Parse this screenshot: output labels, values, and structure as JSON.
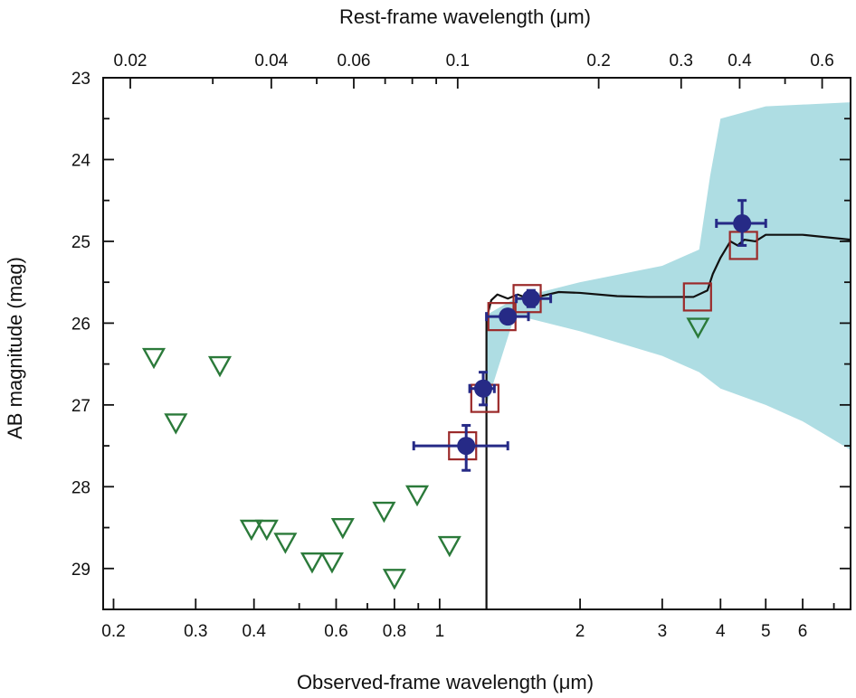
{
  "chart_data": {
    "type": "scatter",
    "title": "",
    "xlabel": "Observed-frame wavelength (μm)",
    "x2label": "Rest-frame wavelength (μm)",
    "ylabel": "AB magnitude (mag)",
    "xscale": "log",
    "x2scale": "log",
    "yaxis_inverted": true,
    "xlim": [
      0.19,
      7.6
    ],
    "x2lim": [
      0.0175,
      0.69
    ],
    "ylim": [
      29.5,
      23
    ],
    "x_ticks": [
      "0.2",
      "0.3",
      "0.4",
      "0.6",
      "0.8",
      "1",
      "2",
      "3",
      "4",
      "5",
      "6"
    ],
    "x_tick_values": [
      0.2,
      0.3,
      0.4,
      0.6,
      0.8,
      1,
      2,
      3,
      4,
      5,
      6
    ],
    "x2_ticks": [
      "0.02",
      "0.04",
      "0.06",
      "0.1",
      "0.2",
      "0.3",
      "0.4",
      "0.6"
    ],
    "x2_tick_values": [
      0.02,
      0.04,
      0.06,
      0.1,
      0.2,
      0.3,
      0.4,
      0.6
    ],
    "y_ticks": [
      "23",
      "24",
      "25",
      "26",
      "27",
      "28",
      "29"
    ],
    "y_tick_values": [
      23,
      24,
      25,
      26,
      27,
      28,
      29
    ],
    "colors": {
      "detections": "#262a86",
      "model_squares": "#9b2a2a",
      "upper_limits": "#2b7a3a",
      "model_band": "#aedde3",
      "model_line": "#111111"
    },
    "series": [
      {
        "kind": "detections",
        "points": [
          {
            "x": 1.14,
            "y": 27.5,
            "xerr": [
              0.88,
              1.4
            ],
            "yerr": [
              27.25,
              27.8
            ]
          },
          {
            "x": 1.24,
            "y": 26.8,
            "xerr": [
              1.16,
              1.31
            ],
            "yerr": [
              26.6,
              27.0
            ]
          },
          {
            "x": 1.4,
            "y": 25.92,
            "xerr": [
              1.26,
              1.55
            ],
            "yerr": [
              25.85,
              26.0
            ]
          },
          {
            "x": 1.57,
            "y": 25.7,
            "xerr": [
              1.46,
              1.73
            ],
            "yerr": [
              25.6,
              25.8
            ]
          },
          {
            "x": 4.45,
            "y": 24.78,
            "xerr": [
              3.92,
              5.0
            ],
            "yerr": [
              24.5,
              25.05
            ]
          }
        ]
      },
      {
        "kind": "model_squares",
        "points": [
          {
            "x": 1.12,
            "y": 27.5
          },
          {
            "x": 1.25,
            "y": 26.92
          },
          {
            "x": 1.36,
            "y": 25.92
          },
          {
            "x": 1.54,
            "y": 25.7
          },
          {
            "x": 3.57,
            "y": 25.68
          },
          {
            "x": 4.48,
            "y": 25.05
          }
        ]
      },
      {
        "kind": "upper_limits",
        "points": [
          {
            "x": 0.244,
            "y": 26.42
          },
          {
            "x": 0.272,
            "y": 27.22
          },
          {
            "x": 0.338,
            "y": 26.52
          },
          {
            "x": 0.395,
            "y": 28.52
          },
          {
            "x": 0.426,
            "y": 28.52
          },
          {
            "x": 0.467,
            "y": 28.68
          },
          {
            "x": 0.533,
            "y": 28.92
          },
          {
            "x": 0.588,
            "y": 28.92
          },
          {
            "x": 0.62,
            "y": 28.5
          },
          {
            "x": 0.76,
            "y": 28.3
          },
          {
            "x": 0.8,
            "y": 29.12
          },
          {
            "x": 0.895,
            "y": 28.1
          },
          {
            "x": 1.05,
            "y": 28.72
          },
          {
            "x": 3.58,
            "y": 26.05
          }
        ]
      },
      {
        "kind": "model_band",
        "upper": [
          [
            1.26,
            25.9
          ],
          [
            1.45,
            25.7
          ],
          [
            2.0,
            25.5
          ],
          [
            3.0,
            25.3
          ],
          [
            3.6,
            25.1
          ],
          [
            3.8,
            24.2
          ],
          [
            4.0,
            23.5
          ],
          [
            5.0,
            23.35
          ],
          [
            7.6,
            23.3
          ]
        ],
        "lower": [
          [
            1.26,
            27.0
          ],
          [
            1.45,
            25.9
          ],
          [
            2.0,
            26.1
          ],
          [
            3.0,
            26.4
          ],
          [
            3.6,
            26.6
          ],
          [
            4.0,
            26.8
          ],
          [
            5.0,
            27.0
          ],
          [
            6.0,
            27.2
          ],
          [
            7.6,
            27.55
          ]
        ]
      },
      {
        "kind": "model_line",
        "points": [
          [
            1.26,
            29.5
          ],
          [
            1.26,
            25.95
          ],
          [
            1.29,
            25.72
          ],
          [
            1.33,
            25.65
          ],
          [
            1.4,
            25.7
          ],
          [
            1.47,
            25.65
          ],
          [
            1.55,
            25.7
          ],
          [
            1.62,
            25.68
          ],
          [
            1.8,
            25.62
          ],
          [
            2.0,
            25.63
          ],
          [
            2.4,
            25.67
          ],
          [
            2.8,
            25.68
          ],
          [
            3.2,
            25.68
          ],
          [
            3.5,
            25.68
          ],
          [
            3.75,
            25.6
          ],
          [
            3.85,
            25.4
          ],
          [
            4.0,
            25.2
          ],
          [
            4.2,
            25.0
          ],
          [
            4.35,
            25.05
          ],
          [
            4.5,
            24.98
          ],
          [
            4.75,
            25.0
          ],
          [
            5.0,
            24.92
          ],
          [
            6.0,
            24.92
          ],
          [
            7.6,
            24.98
          ]
        ]
      }
    ]
  }
}
